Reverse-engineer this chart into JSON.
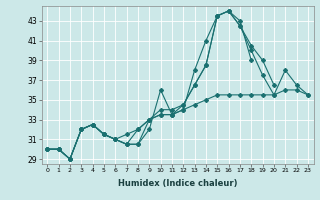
{
  "title": "",
  "xlabel": "Humidex (Indice chaleur)",
  "bg_color": "#cce8e8",
  "grid_color": "#ffffff",
  "line_color": "#1a7070",
  "xlim": [
    -0.5,
    23.5
  ],
  "ylim": [
    28.5,
    44.5
  ],
  "yticks": [
    29,
    31,
    33,
    35,
    37,
    39,
    41,
    43
  ],
  "xticks": [
    0,
    1,
    2,
    3,
    4,
    5,
    6,
    7,
    8,
    9,
    10,
    11,
    12,
    13,
    14,
    15,
    16,
    17,
    18,
    19,
    20,
    21,
    22,
    23
  ],
  "series": [
    [
      30.0,
      30.0,
      29.0,
      32.0,
      32.5,
      31.5,
      31.0,
      30.5,
      30.5,
      32.0,
      36.0,
      33.5,
      34.0,
      38.0,
      41.0,
      43.5,
      44.0,
      43.0,
      39.0,
      null,
      null,
      null,
      null,
      null
    ],
    [
      30.0,
      30.0,
      29.0,
      32.0,
      32.5,
      31.5,
      31.0,
      31.5,
      32.0,
      33.0,
      34.0,
      34.0,
      34.5,
      36.5,
      38.5,
      43.5,
      44.0,
      42.5,
      40.5,
      39.0,
      36.5,
      null,
      null,
      null
    ],
    [
      30.0,
      30.0,
      29.0,
      32.0,
      32.5,
      31.5,
      31.0,
      30.5,
      32.0,
      33.0,
      33.5,
      33.5,
      34.5,
      36.5,
      38.5,
      43.5,
      44.0,
      42.5,
      40.0,
      37.5,
      35.5,
      38.0,
      36.5,
      35.5
    ],
    [
      30.0,
      30.0,
      29.0,
      32.0,
      32.5,
      31.5,
      31.0,
      30.5,
      30.5,
      33.0,
      33.5,
      33.5,
      34.0,
      34.5,
      35.0,
      35.5,
      35.5,
      35.5,
      35.5,
      35.5,
      35.5,
      36.0,
      36.0,
      35.5
    ]
  ]
}
